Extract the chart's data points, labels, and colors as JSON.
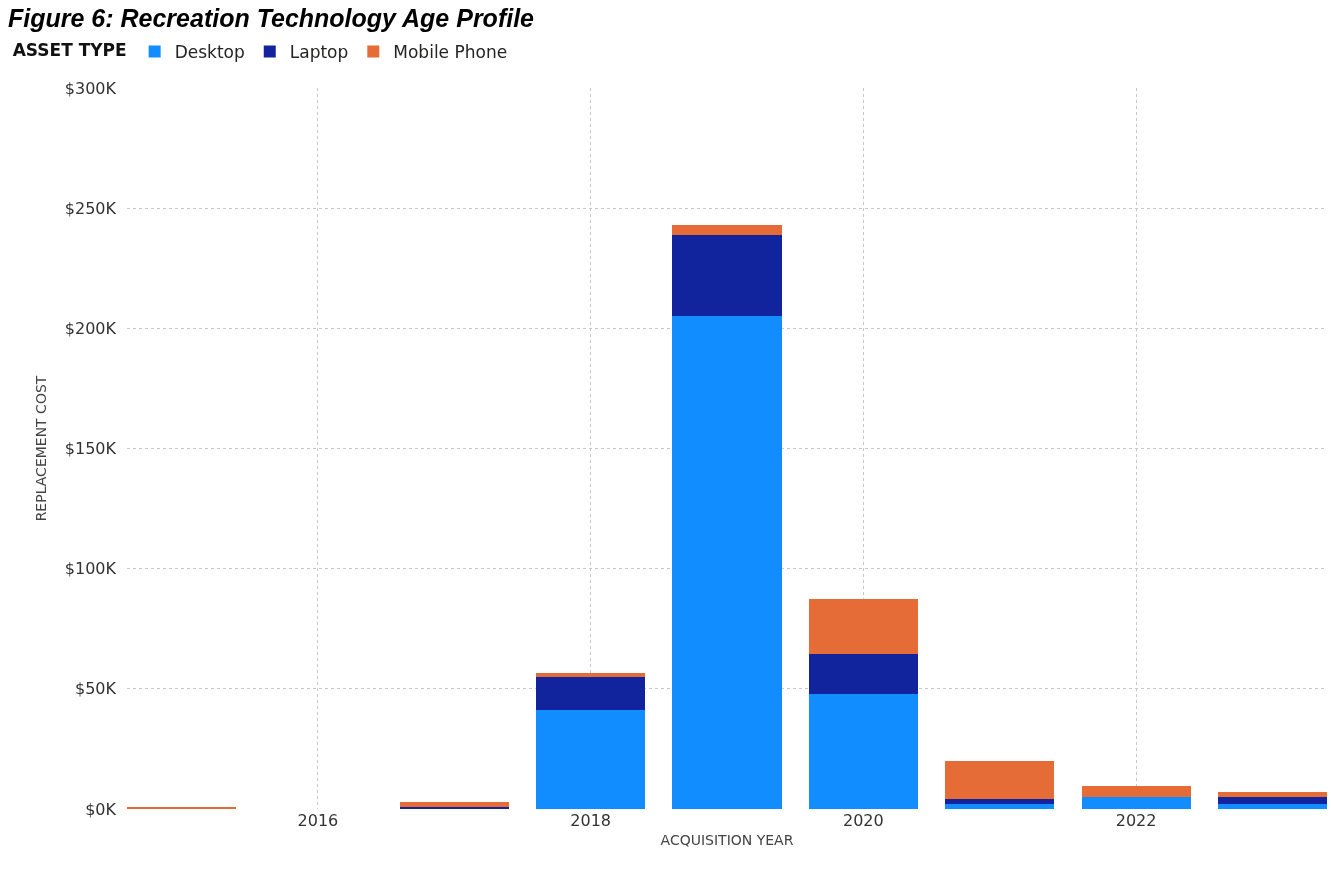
{
  "chart_data": {
    "type": "bar",
    "title": "Figure 6: Recreation Technology Age Profile",
    "xlabel": "ACQUISITION YEAR",
    "ylabel": "REPLACEMENT COST",
    "legend_title": "ASSET TYPE",
    "stacked": true,
    "x": [
      2015,
      2017,
      2018,
      2019,
      2020,
      2021,
      2022,
      2023
    ],
    "series": [
      {
        "name": "Desktop",
        "color": "#118dff",
        "values": [
          null,
          null,
          41,
          205,
          48,
          2,
          5,
          2
        ]
      },
      {
        "name": "Laptop",
        "color": "#12239e",
        "values": [
          null,
          1,
          14,
          34,
          16.5,
          2,
          null,
          3
        ]
      },
      {
        "name": "Mobile Phone",
        "color": "#e66c37",
        "values": [
          0.5,
          2,
          1.5,
          4,
          23,
          16,
          4.5,
          2
        ]
      }
    ],
    "xlim": [
      2014.6,
      2023.4
    ],
    "xticks": [
      2016,
      2018,
      2020,
      2022
    ],
    "ylim": [
      0,
      300
    ],
    "yticks": [
      {
        "value": 0,
        "label": "$0K"
      },
      {
        "value": 50,
        "label": "$50K"
      },
      {
        "value": 100,
        "label": "$100K"
      },
      {
        "value": 150,
        "label": "$150K"
      },
      {
        "value": 200,
        "label": "$200K"
      },
      {
        "value": 250,
        "label": "$250K"
      },
      {
        "value": 300,
        "label": "$300K"
      }
    ],
    "grid": true,
    "legend": "top left"
  }
}
